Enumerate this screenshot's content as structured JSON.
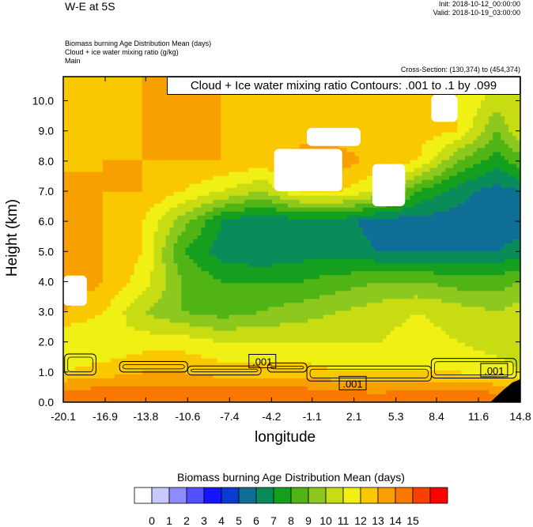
{
  "header": {
    "title": "W-E at 5S",
    "init": "Init: 2018-10-12_00:00:00",
    "valid": "Valid: 2018-10-19_03:00:00",
    "field1": "Biomass burning Age Distribution Mean   (days)",
    "field2": "Cloud + ice water mixing ratio   (g/kg)",
    "field3": "Main",
    "cross_section": "Cross-Section: (130,374) to (454,374)"
  },
  "chart_data": {
    "type": "heatmap",
    "contour_label": "Cloud + Ice water mixing ratio Contours: .001 to .1 by .099",
    "contour_value_labels": [
      ".001",
      ".001",
      ".001"
    ],
    "xlabel": "longitude",
    "ylabel": "Height (km)",
    "xlim": [
      -20.1,
      14.8
    ],
    "ylim": [
      0.0,
      10.8
    ],
    "xticks": [
      "-20.1",
      "-16.9",
      "-13.8",
      "-10.6",
      "-7.4",
      "-4.2",
      "-1.1",
      "2.1",
      "5.3",
      "8.4",
      "11.6",
      "14.8"
    ],
    "yticks": [
      "0.0",
      "1.0",
      "2.0",
      "3.0",
      "4.0",
      "5.0",
      "6.0",
      "7.0",
      "8.0",
      "9.0",
      "10.0"
    ],
    "colorbar": {
      "title": "Biomass burning Age Distribution Mean  (days)",
      "labels": [
        "0",
        "1",
        "2",
        "3",
        "4",
        "5",
        "6",
        "7",
        "8",
        "9",
        "10",
        "11",
        "12",
        "13",
        "14",
        "15"
      ],
      "colors": [
        "#ffffff",
        "#c8c8ff",
        "#8c8cff",
        "#5050ff",
        "#1414ff",
        "#0a3cd2",
        "#0f6e96",
        "#0a8c5a",
        "#14a01e",
        "#50b414",
        "#8cc81e",
        "#c8dc14",
        "#f0f014",
        "#fac800",
        "#f8a000",
        "#f87800",
        "#f84000",
        "#ff0000"
      ]
    },
    "age_days_grid": {
      "x": [
        -20.1,
        -17.0,
        -14.0,
        -11.0,
        -8.0,
        -5.0,
        -2.0,
        1.0,
        4.0,
        7.0,
        10.0,
        13.0,
        14.8
      ],
      "z": [
        0.3,
        1.0,
        2.0,
        3.0,
        4.0,
        5.0,
        6.0,
        7.0,
        8.0,
        9.0,
        10.0,
        10.7
      ],
      "values": [
        [
          14.5,
          14.5,
          14.5,
          14.5,
          14.5,
          14.5,
          14.5,
          14.3,
          14.0,
          14.5,
          14.5,
          14.0,
          13.5
        ],
        [
          12.0,
          12.5,
          13.0,
          13.0,
          12.5,
          12.5,
          12.5,
          12.0,
          12.0,
          12.0,
          12.0,
          11.5,
          11.0
        ],
        [
          11.0,
          11.0,
          11.5,
          11.5,
          11.0,
          11.0,
          11.0,
          11.0,
          11.0,
          11.5,
          11.0,
          10.5,
          10.5
        ],
        [
          13.0,
          12.0,
          10.0,
          9.0,
          8.5,
          9.0,
          9.5,
          10.0,
          10.5,
          11.0,
          10.5,
          10.0,
          10.5
        ],
        [
          14.0,
          13.0,
          11.5,
          9.0,
          8.0,
          8.0,
          8.0,
          8.5,
          9.0,
          9.0,
          8.5,
          8.5,
          9.0
        ],
        [
          14.0,
          13.0,
          12.0,
          8.0,
          6.5,
          6.0,
          6.5,
          6.5,
          6.0,
          6.0,
          6.0,
          6.0,
          6.5
        ],
        [
          14.0,
          13.0,
          12.0,
          9.5,
          7.0,
          6.0,
          6.5,
          6.5,
          5.5,
          5.5,
          5.5,
          5.0,
          5.5
        ],
        [
          14.0,
          13.0,
          13.0,
          12.0,
          11.0,
          10.0,
          12.0,
          12.0,
          11.0,
          8.0,
          6.5,
          5.5,
          6.0
        ],
        [
          12.5,
          13.0,
          13.0,
          13.0,
          13.0,
          12.5,
          13.5,
          13.5,
          12.5,
          12.0,
          9.0,
          7.5,
          8.5
        ],
        [
          12.5,
          12.5,
          13.0,
          13.0,
          13.0,
          12.5,
          12.5,
          12.5,
          12.5,
          12.5,
          12.0,
          9.0,
          11.0
        ],
        [
          12.5,
          12.5,
          13.0,
          13.0,
          13.0,
          12.5,
          12.0,
          12.0,
          12.0,
          12.0,
          12.0,
          10.5,
          11.0
        ],
        [
          12.5,
          12.5,
          13.0,
          13.0,
          13.0,
          12.5,
          12.0,
          12.0,
          12.0,
          12.0,
          12.0,
          11.0,
          11.0
        ]
      ]
    },
    "missing_regions": [
      {
        "x": [
          -4.0,
          1.2
        ],
        "z": [
          7.0,
          8.4
        ]
      },
      {
        "x": [
          -1.5,
          2.6
        ],
        "z": [
          8.5,
          9.1
        ]
      },
      {
        "x": [
          3.5,
          6.0
        ],
        "z": [
          6.5,
          7.9
        ]
      },
      {
        "x": [
          -20.1,
          -18.3
        ],
        "z": [
          3.2,
          4.2
        ]
      },
      {
        "x": [
          8.0,
          10.0
        ],
        "z": [
          9.3,
          10.2
        ]
      }
    ],
    "cloud_contours": [
      {
        "x": [
          -20.0,
          -17.6
        ],
        "z": [
          0.9,
          1.6
        ]
      },
      {
        "x": [
          -15.8,
          -10.6
        ],
        "z": [
          1.0,
          1.35
        ]
      },
      {
        "x": [
          -10.6,
          -5.0
        ],
        "z": [
          0.9,
          1.2
        ]
      },
      {
        "x": [
          -4.5,
          -1.5
        ],
        "z": [
          1.0,
          1.3
        ]
      },
      {
        "x": [
          -1.5,
          8.0
        ],
        "z": [
          0.7,
          1.2
        ]
      },
      {
        "x": [
          8.0,
          14.5
        ],
        "z": [
          0.8,
          1.45
        ]
      }
    ]
  }
}
